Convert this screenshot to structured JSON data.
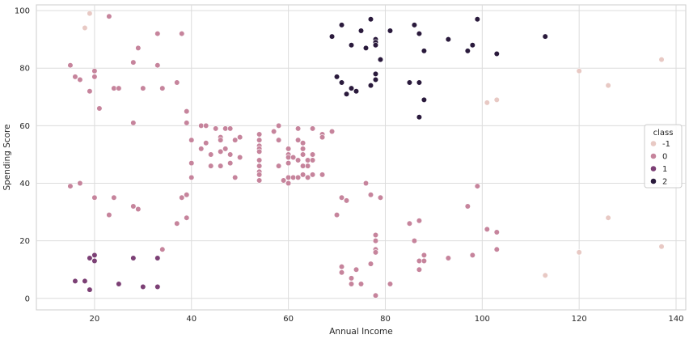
{
  "chart_data": {
    "type": "scatter",
    "title": "",
    "xlabel": "Annual Income",
    "ylabel": "Spending Score",
    "xlim": [
      8,
      142
    ],
    "ylim": [
      -4,
      102
    ],
    "xticks": [
      20,
      40,
      60,
      80,
      100,
      120,
      140
    ],
    "yticks": [
      0,
      20,
      40,
      60,
      80,
      100
    ],
    "grid": true,
    "legend": {
      "title": "class",
      "placement": "right",
      "entries": [
        {
          "label": "-1",
          "color": "#e8c9c4"
        },
        {
          "label": "0",
          "color": "#c6849c"
        },
        {
          "label": "1",
          "color": "#7c4075"
        },
        {
          "label": "2",
          "color": "#2a1a3c"
        }
      ]
    },
    "series": [
      {
        "name": "-1",
        "color": "#e8c9c4",
        "points": [
          [
            19,
            99
          ],
          [
            18,
            94
          ],
          [
            101,
            68
          ],
          [
            103,
            69
          ],
          [
            120,
            79
          ],
          [
            126,
            74
          ],
          [
            137,
            83
          ],
          [
            120,
            16
          ],
          [
            126,
            28
          ],
          [
            137,
            18
          ],
          [
            113,
            8
          ]
        ]
      },
      {
        "name": "0",
        "color": "#c6849c",
        "points": [
          [
            15,
            81
          ],
          [
            16,
            77
          ],
          [
            17,
            76
          ],
          [
            19,
            72
          ],
          [
            20,
            79
          ],
          [
            20,
            77
          ],
          [
            21,
            66
          ],
          [
            23,
            98
          ],
          [
            24,
            73
          ],
          [
            25,
            73
          ],
          [
            28,
            82
          ],
          [
            29,
            87
          ],
          [
            30,
            73
          ],
          [
            33,
            92
          ],
          [
            33,
            81
          ],
          [
            34,
            73
          ],
          [
            37,
            75
          ],
          [
            38,
            92
          ],
          [
            28,
            61
          ],
          [
            39,
            65
          ],
          [
            39,
            61
          ],
          [
            40,
            55
          ],
          [
            40,
            47
          ],
          [
            40,
            42
          ],
          [
            42,
            60
          ],
          [
            42,
            52
          ],
          [
            43,
            60
          ],
          [
            43,
            54
          ],
          [
            44,
            50
          ],
          [
            44,
            46
          ],
          [
            45,
            59
          ],
          [
            46,
            56
          ],
          [
            46,
            55
          ],
          [
            46,
            51
          ],
          [
            46,
            46
          ],
          [
            47,
            59
          ],
          [
            47,
            52
          ],
          [
            48,
            59
          ],
          [
            48,
            50
          ],
          [
            48,
            47
          ],
          [
            49,
            55
          ],
          [
            49,
            42
          ],
          [
            50,
            56
          ],
          [
            50,
            49
          ],
          [
            54,
            57
          ],
          [
            54,
            55
          ],
          [
            54,
            53
          ],
          [
            54,
            52
          ],
          [
            54,
            51
          ],
          [
            54,
            48
          ],
          [
            54,
            46
          ],
          [
            54,
            44
          ],
          [
            54,
            43
          ],
          [
            54,
            41
          ],
          [
            57,
            58
          ],
          [
            58,
            60
          ],
          [
            58,
            55
          ],
          [
            58,
            46
          ],
          [
            59,
            41
          ],
          [
            60,
            52
          ],
          [
            60,
            50
          ],
          [
            60,
            49
          ],
          [
            60,
            47
          ],
          [
            60,
            42
          ],
          [
            60,
            40
          ],
          [
            61,
            49
          ],
          [
            61,
            42
          ],
          [
            62,
            59
          ],
          [
            62,
            55
          ],
          [
            62,
            48
          ],
          [
            62,
            42
          ],
          [
            63,
            54
          ],
          [
            63,
            52
          ],
          [
            63,
            50
          ],
          [
            63,
            46
          ],
          [
            63,
            43
          ],
          [
            64,
            48
          ],
          [
            64,
            46
          ],
          [
            64,
            42
          ],
          [
            65,
            59
          ],
          [
            65,
            50
          ],
          [
            65,
            48
          ],
          [
            65,
            43
          ],
          [
            67,
            57
          ],
          [
            67,
            56
          ],
          [
            67,
            43
          ],
          [
            69,
            58
          ],
          [
            15,
            39
          ],
          [
            17,
            40
          ],
          [
            20,
            35
          ],
          [
            23,
            29
          ],
          [
            24,
            35
          ],
          [
            28,
            32
          ],
          [
            29,
            31
          ],
          [
            34,
            17
          ],
          [
            37,
            26
          ],
          [
            38,
            35
          ],
          [
            39,
            36
          ],
          [
            39,
            28
          ],
          [
            70,
            29
          ],
          [
            71,
            35
          ],
          [
            71,
            11
          ],
          [
            71,
            9
          ],
          [
            72,
            34
          ],
          [
            73,
            7
          ],
          [
            73,
            5
          ],
          [
            74,
            10
          ],
          [
            75,
            5
          ],
          [
            76,
            40
          ],
          [
            77,
            36
          ],
          [
            77,
            12
          ],
          [
            78,
            22
          ],
          [
            78,
            20
          ],
          [
            78,
            17
          ],
          [
            78,
            16
          ],
          [
            78,
            1
          ],
          [
            79,
            35
          ],
          [
            81,
            5
          ],
          [
            85,
            26
          ],
          [
            86,
            20
          ],
          [
            87,
            27
          ],
          [
            87,
            13
          ],
          [
            87,
            10
          ],
          [
            88,
            15
          ],
          [
            88,
            13
          ],
          [
            93,
            14
          ],
          [
            97,
            32
          ],
          [
            98,
            15
          ],
          [
            99,
            39
          ],
          [
            101,
            24
          ],
          [
            103,
            23
          ],
          [
            103,
            17
          ]
        ]
      },
      {
        "name": "1",
        "color": "#7c4075",
        "points": [
          [
            16,
            6
          ],
          [
            18,
            6
          ],
          [
            19,
            14
          ],
          [
            19,
            3
          ],
          [
            20,
            15
          ],
          [
            20,
            13
          ],
          [
            25,
            5
          ],
          [
            28,
            14
          ],
          [
            30,
            4
          ],
          [
            33,
            14
          ],
          [
            33,
            4
          ]
        ]
      },
      {
        "name": "2",
        "color": "#2a1a3c",
        "points": [
          [
            69,
            91
          ],
          [
            70,
            77
          ],
          [
            71,
            95
          ],
          [
            71,
            75
          ],
          [
            72,
            71
          ],
          [
            73,
            88
          ],
          [
            73,
            73
          ],
          [
            74,
            72
          ],
          [
            75,
            93
          ],
          [
            76,
            87
          ],
          [
            77,
            97
          ],
          [
            77,
            74
          ],
          [
            78,
            90
          ],
          [
            78,
            89
          ],
          [
            78,
            88
          ],
          [
            78,
            78
          ],
          [
            78,
            76
          ],
          [
            79,
            83
          ],
          [
            81,
            93
          ],
          [
            85,
            75
          ],
          [
            86,
            95
          ],
          [
            87,
            92
          ],
          [
            87,
            75
          ],
          [
            87,
            63
          ],
          [
            88,
            86
          ],
          [
            88,
            69
          ],
          [
            93,
            90
          ],
          [
            97,
            86
          ],
          [
            98,
            88
          ],
          [
            99,
            97
          ],
          [
            103,
            85
          ],
          [
            113,
            91
          ]
        ]
      }
    ]
  }
}
